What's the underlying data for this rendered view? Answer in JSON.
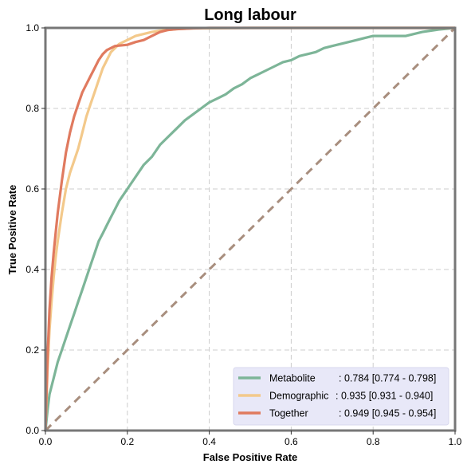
{
  "chart_data": {
    "type": "line",
    "title": "Long labour",
    "xlabel": "False Positive Rate",
    "ylabel": "True Positive Rate",
    "xlim": [
      0,
      1
    ],
    "ylim": [
      0,
      1
    ],
    "xticks": [
      "0.0",
      "0.2",
      "0.4",
      "0.6",
      "0.8",
      "1.0"
    ],
    "yticks": [
      "0.0",
      "0.2",
      "0.4",
      "0.6",
      "0.8",
      "1.0"
    ],
    "grid": true,
    "legend_position": "bottom-right",
    "colors": {
      "metabolite": "#7db598",
      "demographic": "#f3c98b",
      "together": "#e07a5f",
      "chance": "#a88e7e",
      "legend_bg": "#e8e8f8",
      "grid": "#cccccc",
      "frame": "#777777"
    },
    "series": [
      {
        "name": "Metabolite",
        "legend_label": ": 0.784 [0.774 - 0.798]",
        "x": [
          0,
          0.005,
          0.01,
          0.02,
          0.03,
          0.04,
          0.05,
          0.06,
          0.07,
          0.08,
          0.09,
          0.1,
          0.11,
          0.12,
          0.13,
          0.14,
          0.15,
          0.16,
          0.17,
          0.18,
          0.2,
          0.22,
          0.24,
          0.26,
          0.28,
          0.3,
          0.32,
          0.34,
          0.36,
          0.38,
          0.4,
          0.42,
          0.44,
          0.46,
          0.48,
          0.5,
          0.52,
          0.54,
          0.56,
          0.58,
          0.6,
          0.62,
          0.64,
          0.66,
          0.68,
          0.7,
          0.72,
          0.74,
          0.76,
          0.78,
          0.8,
          0.82,
          0.84,
          0.86,
          0.88,
          0.9,
          0.92,
          0.94,
          0.96,
          0.98,
          1.0
        ],
        "y": [
          0,
          0.05,
          0.09,
          0.13,
          0.17,
          0.2,
          0.23,
          0.26,
          0.29,
          0.32,
          0.35,
          0.38,
          0.41,
          0.44,
          0.47,
          0.49,
          0.51,
          0.53,
          0.55,
          0.57,
          0.6,
          0.63,
          0.66,
          0.68,
          0.71,
          0.73,
          0.75,
          0.77,
          0.785,
          0.8,
          0.815,
          0.825,
          0.835,
          0.85,
          0.86,
          0.875,
          0.885,
          0.895,
          0.905,
          0.915,
          0.92,
          0.93,
          0.935,
          0.94,
          0.95,
          0.955,
          0.96,
          0.965,
          0.97,
          0.975,
          0.98,
          0.98,
          0.98,
          0.98,
          0.98,
          0.985,
          0.99,
          0.993,
          0.996,
          0.998,
          1.0
        ]
      },
      {
        "name": "Demographic",
        "legend_label": ": 0.935 [0.931 - 0.940]",
        "x": [
          0,
          0.005,
          0.01,
          0.015,
          0.02,
          0.025,
          0.03,
          0.04,
          0.05,
          0.06,
          0.07,
          0.08,
          0.09,
          0.1,
          0.11,
          0.12,
          0.13,
          0.14,
          0.15,
          0.16,
          0.18,
          0.2,
          0.22,
          0.24,
          0.26,
          0.28,
          0.3,
          0.32,
          0.34,
          0.36,
          0.4,
          0.5,
          0.6,
          0.7,
          0.8,
          0.9,
          1.0
        ],
        "y": [
          0,
          0.15,
          0.25,
          0.32,
          0.38,
          0.43,
          0.47,
          0.54,
          0.6,
          0.64,
          0.67,
          0.7,
          0.74,
          0.78,
          0.81,
          0.84,
          0.87,
          0.9,
          0.92,
          0.94,
          0.96,
          0.97,
          0.98,
          0.985,
          0.99,
          0.993,
          0.995,
          0.997,
          0.998,
          0.999,
          0.999,
          1.0,
          1.0,
          1.0,
          1.0,
          1.0,
          1.0
        ]
      },
      {
        "name": "Together",
        "legend_label": ": 0.949 [0.945 - 0.954]",
        "x": [
          0,
          0.005,
          0.01,
          0.015,
          0.02,
          0.025,
          0.03,
          0.04,
          0.05,
          0.06,
          0.07,
          0.08,
          0.09,
          0.1,
          0.11,
          0.12,
          0.13,
          0.14,
          0.15,
          0.17,
          0.19,
          0.2,
          0.22,
          0.24,
          0.26,
          0.28,
          0.3,
          0.32,
          0.34,
          0.36,
          0.4,
          0.5,
          0.6,
          0.7,
          0.8,
          1.0
        ],
        "y": [
          0,
          0.18,
          0.3,
          0.38,
          0.44,
          0.49,
          0.54,
          0.62,
          0.69,
          0.74,
          0.78,
          0.81,
          0.84,
          0.86,
          0.88,
          0.9,
          0.92,
          0.935,
          0.945,
          0.955,
          0.957,
          0.958,
          0.965,
          0.97,
          0.98,
          0.99,
          0.995,
          0.997,
          0.998,
          0.999,
          1.0,
          1.0,
          1.0,
          1.0,
          1.0,
          1.0
        ]
      },
      {
        "name": "",
        "role": "chance-diagonal",
        "x": [
          0,
          1
        ],
        "y": [
          0,
          1
        ]
      }
    ]
  }
}
